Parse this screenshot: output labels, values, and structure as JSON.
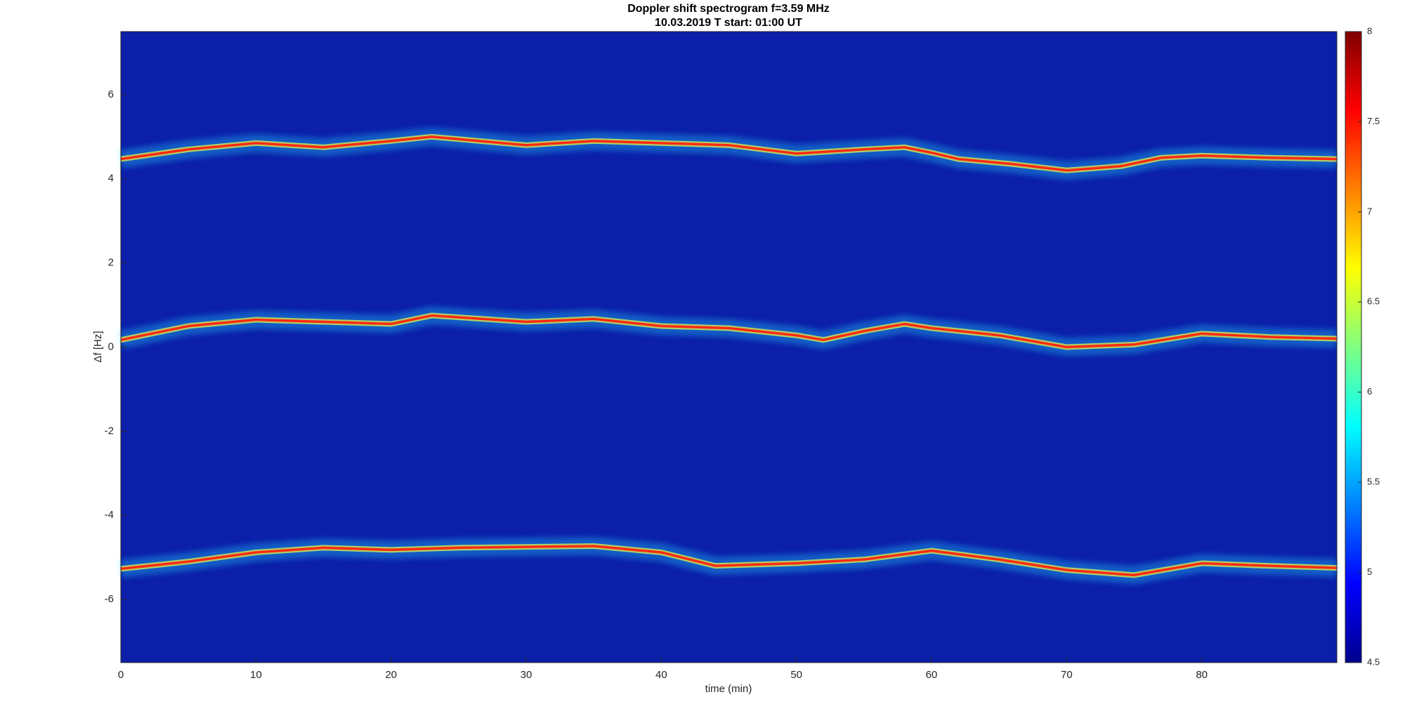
{
  "chart_data": {
    "type": "spectrogram",
    "title": "Doppler shift spectrogram f=3.59 MHz",
    "subtitle": "10.03.2019   T start: 01:00 UT",
    "x_label": "time (min)",
    "y_label": "Δf [Hz]",
    "xlim": [
      0,
      90
    ],
    "xticks": [
      0,
      10,
      20,
      30,
      40,
      50,
      60,
      70,
      80
    ],
    "ylim": [
      -7.5,
      7.5
    ],
    "yticks": [
      -6,
      -4,
      -2,
      0,
      2,
      4,
      6
    ],
    "background": "#0b1fa8",
    "series": [
      {
        "color": "#ff2a10",
        "x": [
          0,
          5,
          10,
          15,
          20,
          23,
          30,
          35,
          40,
          45,
          50,
          55,
          58,
          60,
          62,
          66,
          70,
          74,
          77,
          80,
          85,
          90
        ],
        "values": [
          4.47,
          4.7,
          4.85,
          4.75,
          4.9,
          5.0,
          4.8,
          4.9,
          4.85,
          4.8,
          4.6,
          4.7,
          4.75,
          4.62,
          4.47,
          4.35,
          4.2,
          4.3,
          4.5,
          4.55,
          4.5,
          4.47
        ]
      },
      {
        "color": "#ff2a10",
        "x": [
          0,
          5,
          10,
          20,
          23,
          30,
          35,
          40,
          45,
          50,
          52,
          55,
          58,
          60,
          65,
          70,
          75,
          80,
          85,
          90
        ],
        "values": [
          0.17,
          0.5,
          0.65,
          0.55,
          0.75,
          0.6,
          0.67,
          0.5,
          0.45,
          0.28,
          0.17,
          0.38,
          0.55,
          0.45,
          0.28,
          0,
          0.06,
          0.32,
          0.24,
          0.2
        ]
      },
      {
        "color": "#ff2a10",
        "x": [
          0,
          5,
          10,
          15,
          20,
          25,
          35,
          40,
          44,
          50,
          55,
          60,
          65,
          70,
          75,
          80,
          85,
          90
        ],
        "values": [
          -5.27,
          -5.1,
          -4.88,
          -4.77,
          -4.82,
          -4.77,
          -4.73,
          -4.88,
          -5.2,
          -5.14,
          -5.05,
          -4.84,
          -5.05,
          -5.3,
          -5.42,
          -5.14,
          -5.2,
          -5.25
        ]
      }
    ],
    "colorbar": {
      "lim": [
        4.5,
        8
      ],
      "ticks": [
        4.5,
        5,
        5.5,
        6,
        6.5,
        7,
        7.5,
        8
      ],
      "colors": [
        "#00008f",
        "#0000ff",
        "#0080ff",
        "#00ffff",
        "#80ff80",
        "#ffff00",
        "#ff8000",
        "#ff0000",
        "#800000"
      ]
    }
  }
}
